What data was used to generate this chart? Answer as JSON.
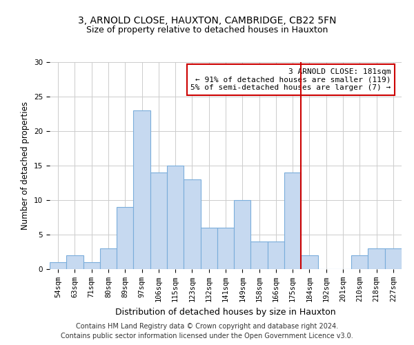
{
  "title_line1": "3, ARNOLD CLOSE, HAUXTON, CAMBRIDGE, CB22 5FN",
  "title_line2": "Size of property relative to detached houses in Hauxton",
  "xlabel": "Distribution of detached houses by size in Hauxton",
  "ylabel": "Number of detached properties",
  "categories": [
    "54sqm",
    "63sqm",
    "71sqm",
    "80sqm",
    "89sqm",
    "97sqm",
    "106sqm",
    "115sqm",
    "123sqm",
    "132sqm",
    "141sqm",
    "149sqm",
    "158sqm",
    "166sqm",
    "175sqm",
    "184sqm",
    "192sqm",
    "201sqm",
    "210sqm",
    "218sqm",
    "227sqm"
  ],
  "values": [
    1,
    2,
    1,
    3,
    9,
    23,
    14,
    15,
    13,
    6,
    6,
    10,
    4,
    4,
    14,
    2,
    0,
    0,
    2,
    3,
    3
  ],
  "bar_color": "#c6d9f0",
  "bar_edge_color": "#7aaddb",
  "vline_color": "#cc0000",
  "annotation_title": "3 ARNOLD CLOSE: 181sqm",
  "annotation_line1": "← 91% of detached houses are smaller (119)",
  "annotation_line2": "5% of semi-detached houses are larger (7) →",
  "annotation_box_color": "#cc0000",
  "ylim": [
    0,
    30
  ],
  "yticks": [
    0,
    5,
    10,
    15,
    20,
    25,
    30
  ],
  "footer_line1": "Contains HM Land Registry data © Crown copyright and database right 2024.",
  "footer_line2": "Contains public sector information licensed under the Open Government Licence v3.0.",
  "background_color": "#ffffff",
  "grid_color": "#cccccc",
  "title1_fontsize": 10,
  "title2_fontsize": 9,
  "xlabel_fontsize": 9,
  "ylabel_fontsize": 8.5,
  "tick_fontsize": 7.5,
  "footer_fontsize": 7,
  "ann_fontsize": 8
}
